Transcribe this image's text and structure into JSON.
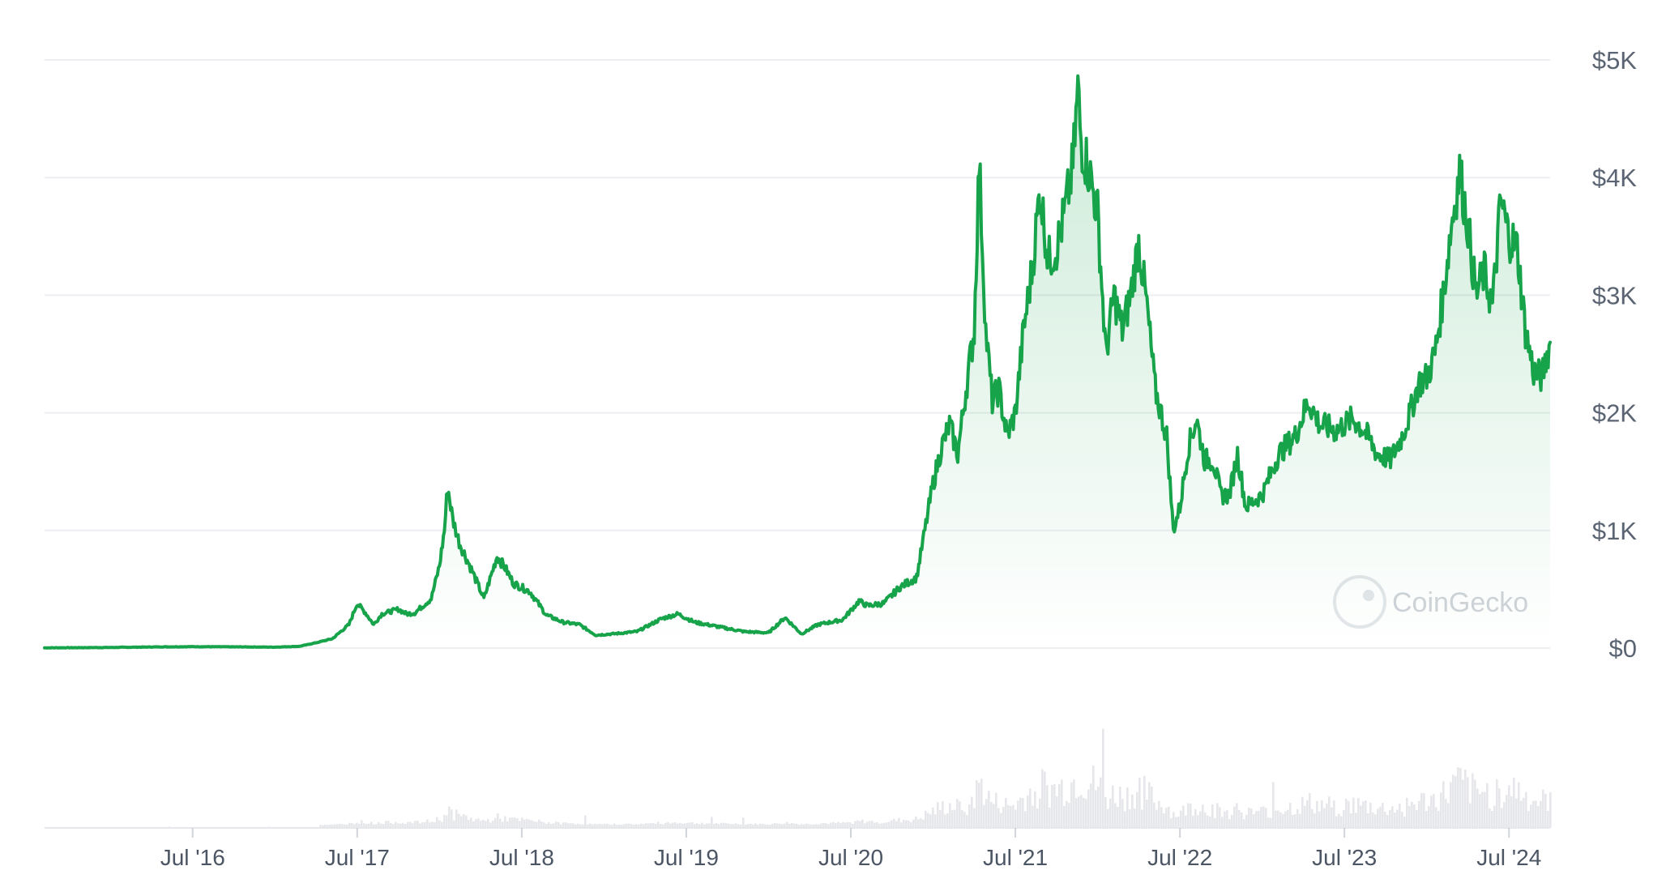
{
  "chart_data": {
    "type": "line",
    "y_ticks": [
      "$0",
      "$1K",
      "$2K",
      "$3K",
      "$4K",
      "$5K"
    ],
    "y_tick_values": [
      0,
      1000,
      2000,
      3000,
      4000,
      5000
    ],
    "ylim": [
      0,
      5000
    ],
    "x_ticks": [
      "Jul '16",
      "Jul '17",
      "Jul '18",
      "Jul '19",
      "Jul '20",
      "Jul '21",
      "Jul '22",
      "Jul '23",
      "Jul '24"
    ],
    "x_tick_values": [
      2016.5,
      2017.5,
      2018.5,
      2019.5,
      2020.5,
      2021.5,
      2022.5,
      2023.5,
      2024.5
    ],
    "xlim": [
      2015.6,
      2024.75
    ],
    "grid": true,
    "line_color": "#16a34a",
    "fill_color": "#16a34a",
    "volume_color": "#e5e7eb",
    "watermark": "CoinGecko",
    "series": [
      {
        "points": [
          [
            2015.6,
            2
          ],
          [
            2016.0,
            5
          ],
          [
            2016.3,
            10
          ],
          [
            2016.5,
            12
          ],
          [
            2016.8,
            10
          ],
          [
            2017.0,
            8
          ],
          [
            2017.15,
            15
          ],
          [
            2017.25,
            45
          ],
          [
            2017.35,
            80
          ],
          [
            2017.45,
            200
          ],
          [
            2017.5,
            380
          ],
          [
            2017.55,
            300
          ],
          [
            2017.6,
            200
          ],
          [
            2017.65,
            290
          ],
          [
            2017.7,
            310
          ],
          [
            2017.75,
            330
          ],
          [
            2017.8,
            290
          ],
          [
            2017.85,
            300
          ],
          [
            2017.95,
            420
          ],
          [
            2018.0,
            700
          ],
          [
            2018.03,
            1000
          ],
          [
            2018.05,
            1380
          ],
          [
            2018.08,
            1100
          ],
          [
            2018.12,
            900
          ],
          [
            2018.2,
            650
          ],
          [
            2018.27,
            420
          ],
          [
            2018.35,
            780
          ],
          [
            2018.4,
            680
          ],
          [
            2018.45,
            550
          ],
          [
            2018.55,
            480
          ],
          [
            2018.65,
            280
          ],
          [
            2018.75,
            220
          ],
          [
            2018.85,
            200
          ],
          [
            2018.95,
            110
          ],
          [
            2019.05,
            120
          ],
          [
            2019.2,
            140
          ],
          [
            2019.35,
            250
          ],
          [
            2019.45,
            290
          ],
          [
            2019.55,
            220
          ],
          [
            2019.7,
            180
          ],
          [
            2019.85,
            140
          ],
          [
            2020.0,
            130
          ],
          [
            2020.1,
            260
          ],
          [
            2020.2,
            120
          ],
          [
            2020.3,
            200
          ],
          [
            2020.45,
            240
          ],
          [
            2020.55,
            400
          ],
          [
            2020.6,
            360
          ],
          [
            2020.7,
            380
          ],
          [
            2020.8,
            520
          ],
          [
            2020.9,
            600
          ],
          [
            2020.95,
            1000
          ],
          [
            2021.0,
            1400
          ],
          [
            2021.05,
            1700
          ],
          [
            2021.1,
            1900
          ],
          [
            2021.15,
            1650
          ],
          [
            2021.2,
            2200
          ],
          [
            2021.25,
            2700
          ],
          [
            2021.28,
            4150
          ],
          [
            2021.32,
            2700
          ],
          [
            2021.36,
            2100
          ],
          [
            2021.4,
            2200
          ],
          [
            2021.45,
            1800
          ],
          [
            2021.5,
            2000
          ],
          [
            2021.55,
            2700
          ],
          [
            2021.6,
            3200
          ],
          [
            2021.65,
            3900
          ],
          [
            2021.7,
            3300
          ],
          [
            2021.75,
            3400
          ],
          [
            2021.8,
            3700
          ],
          [
            2021.85,
            4100
          ],
          [
            2021.88,
            4750
          ],
          [
            2021.9,
            4300
          ],
          [
            2021.95,
            4050
          ],
          [
            2022.0,
            3700
          ],
          [
            2022.05,
            2500
          ],
          [
            2022.1,
            3000
          ],
          [
            2022.15,
            2700
          ],
          [
            2022.2,
            3000
          ],
          [
            2022.25,
            3450
          ],
          [
            2022.3,
            2900
          ],
          [
            2022.35,
            2200
          ],
          [
            2022.42,
            1800
          ],
          [
            2022.46,
            1000
          ],
          [
            2022.5,
            1200
          ],
          [
            2022.55,
            1700
          ],
          [
            2022.6,
            1950
          ],
          [
            2022.65,
            1600
          ],
          [
            2022.7,
            1600
          ],
          [
            2022.75,
            1300
          ],
          [
            2022.8,
            1300
          ],
          [
            2022.85,
            1650
          ],
          [
            2022.9,
            1200
          ],
          [
            2022.95,
            1250
          ],
          [
            2023.0,
            1300
          ],
          [
            2023.1,
            1650
          ],
          [
            2023.2,
            1800
          ],
          [
            2023.28,
            2100
          ],
          [
            2023.35,
            1900
          ],
          [
            2023.45,
            1850
          ],
          [
            2023.55,
            1950
          ],
          [
            2023.62,
            1850
          ],
          [
            2023.7,
            1650
          ],
          [
            2023.78,
            1600
          ],
          [
            2023.85,
            1800
          ],
          [
            2023.9,
            2000
          ],
          [
            2023.95,
            2250
          ],
          [
            2024.0,
            2300
          ],
          [
            2024.05,
            2500
          ],
          [
            2024.1,
            3000
          ],
          [
            2024.15,
            3600
          ],
          [
            2024.2,
            4050
          ],
          [
            2024.25,
            3600
          ],
          [
            2024.3,
            3000
          ],
          [
            2024.35,
            3200
          ],
          [
            2024.4,
            2900
          ],
          [
            2024.45,
            3800
          ],
          [
            2024.5,
            3500
          ],
          [
            2024.55,
            3400
          ],
          [
            2024.6,
            2700
          ],
          [
            2024.65,
            2350
          ],
          [
            2024.7,
            2300
          ],
          [
            2024.75,
            2600
          ]
        ]
      }
    ]
  }
}
